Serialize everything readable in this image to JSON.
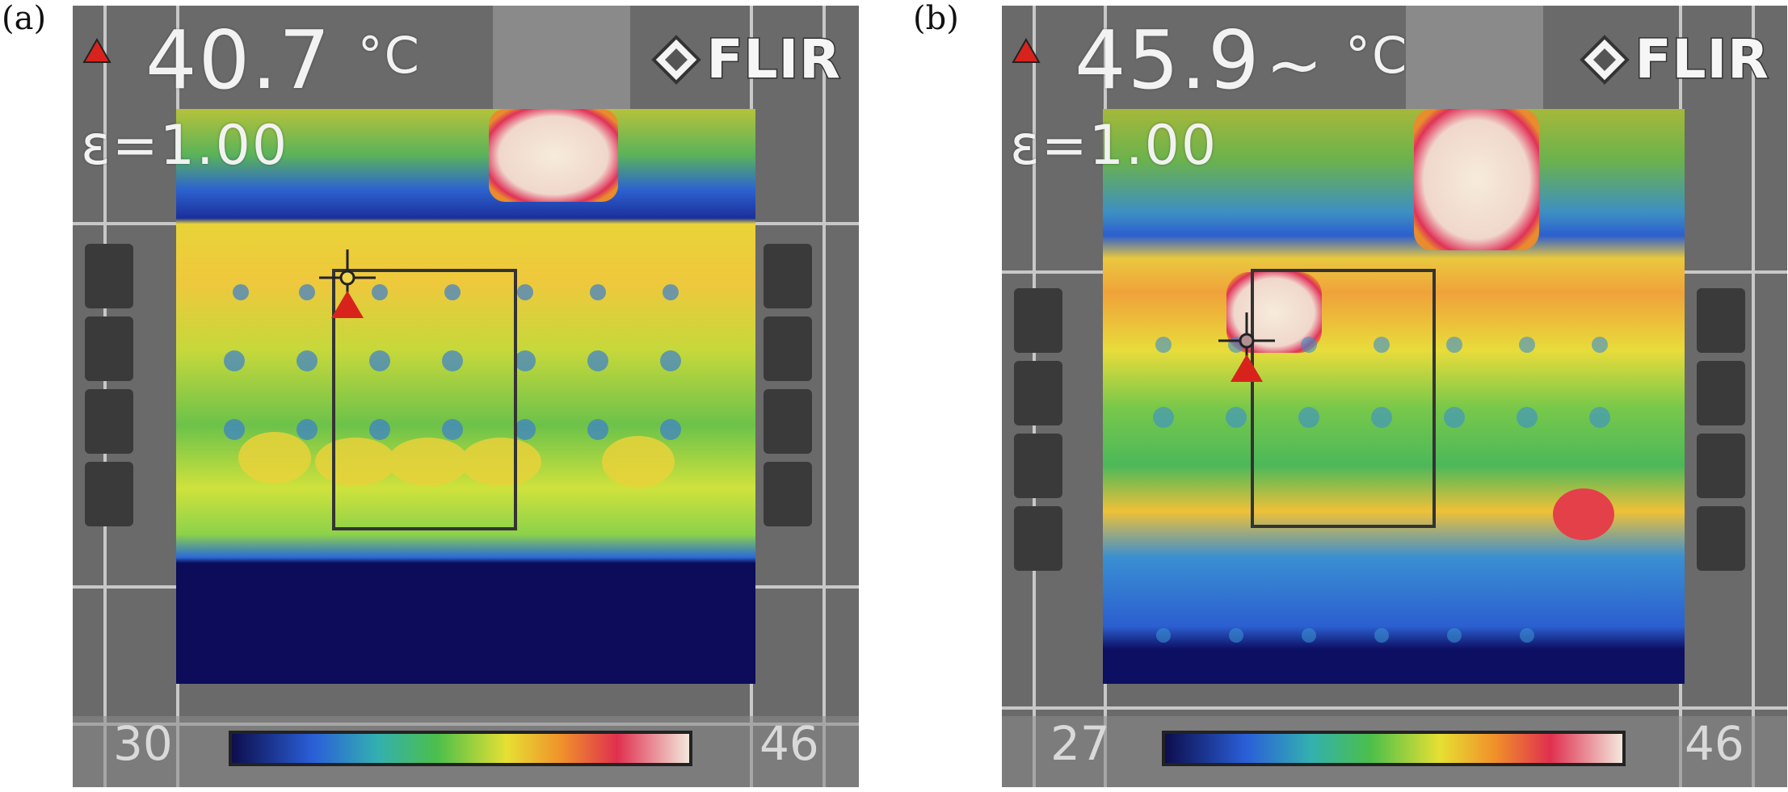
{
  "figure": {
    "panels": [
      {
        "label": "(a)",
        "temperature_reading": "40.7",
        "reading_suffix": "",
        "unit": "°C",
        "emissivity": "ε=1.00",
        "brand": "FLIR",
        "scale_min": "30",
        "scale_max": "46",
        "icon": "max-temperature-triangle-icon"
      },
      {
        "label": "(b)",
        "temperature_reading": "45.9",
        "reading_suffix": "~",
        "unit": "°C",
        "emissivity": "ε=1.00",
        "brand": "FLIR",
        "scale_min": "27",
        "scale_max": "46",
        "icon": "max-temperature-triangle-icon"
      }
    ],
    "colors": {
      "marker_red": "#d8231c",
      "cold": "#0c0c5a",
      "blue": "#2f6fd8",
      "green": "#3db34a",
      "yellow": "#ede233",
      "orange": "#f09a2a",
      "hot": "#e23a55",
      "white_hot": "#f2e7d8"
    }
  }
}
